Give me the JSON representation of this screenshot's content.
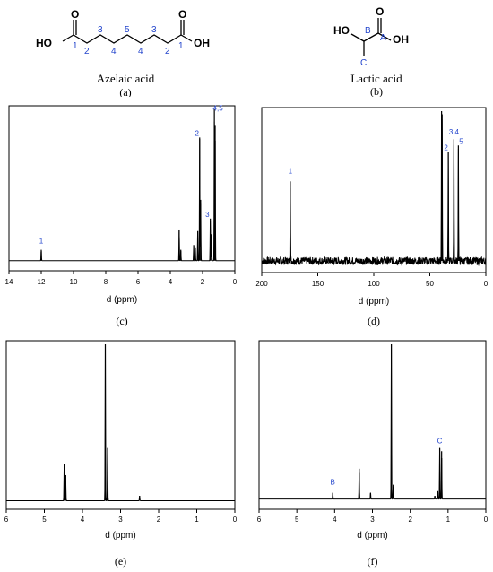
{
  "structures": [
    {
      "name": "Azelaic acid",
      "panel": "(a)",
      "atoms": {
        "oh_left": "HO",
        "oh_right": "OH",
        "o_left": "O",
        "o_right": "O"
      },
      "carbon_labels": [
        "1",
        "2",
        "3",
        "4",
        "5",
        "4",
        "3",
        "2",
        "1"
      ]
    },
    {
      "name": "Lactic acid",
      "panel": "(b)",
      "atoms": {
        "ho": "HO",
        "oh": "OH",
        "o": "O"
      },
      "carbon_labels": {
        "a": "A",
        "b": "B",
        "c": "C"
      }
    }
  ],
  "colors": {
    "label_blue": "#2244cc",
    "line": "#000000"
  },
  "chart_data": [
    {
      "type": "line",
      "panel": "(c)",
      "xlabel": "d (ppm)",
      "xlim": [
        14,
        0
      ],
      "ylim": [
        0,
        100
      ],
      "xticks": [
        14,
        12,
        10,
        8,
        6,
        4,
        2,
        0
      ],
      "baseline": 3,
      "peaks": [
        {
          "x": 12.0,
          "h": 10
        },
        {
          "x": 3.45,
          "h": 23
        },
        {
          "x": 3.35,
          "h": 10
        },
        {
          "x": 2.55,
          "h": 13
        },
        {
          "x": 2.45,
          "h": 11
        },
        {
          "x": 2.3,
          "h": 22
        },
        {
          "x": 2.18,
          "h": 82
        },
        {
          "x": 2.12,
          "h": 42
        },
        {
          "x": 1.52,
          "h": 30
        },
        {
          "x": 1.45,
          "h": 20
        },
        {
          "x": 1.27,
          "h": 100
        },
        {
          "x": 1.22,
          "h": 90
        }
      ],
      "annotations": [
        {
          "x": 12.0,
          "y": 14,
          "text": "1"
        },
        {
          "x": 2.35,
          "y": 83,
          "text": "2"
        },
        {
          "x": 1.7,
          "y": 31,
          "text": "3"
        },
        {
          "x": 1.05,
          "y": 99,
          "text": "4,5"
        }
      ]
    },
    {
      "type": "line",
      "panel": "(d)",
      "xlabel": "d (ppm)",
      "xlim": [
        200,
        0
      ],
      "ylim": [
        0,
        100
      ],
      "xticks": [
        200,
        150,
        100,
        50,
        0
      ],
      "baseline": 4,
      "noise": 2.5,
      "peaks": [
        {
          "x": 174.5,
          "h": 55
        },
        {
          "x": 39.5,
          "h": 100
        },
        {
          "x": 39.0,
          "h": 98
        },
        {
          "x": 33.5,
          "h": 74
        },
        {
          "x": 28.5,
          "h": 82
        },
        {
          "x": 24.5,
          "h": 78
        }
      ],
      "annotations": [
        {
          "x": 174.5,
          "y": 60,
          "text": "1"
        },
        {
          "x": 35.5,
          "y": 75,
          "text": "2"
        },
        {
          "x": 28.5,
          "y": 85,
          "text": "3,4"
        },
        {
          "x": 22.0,
          "y": 79,
          "text": "5"
        }
      ]
    },
    {
      "type": "line",
      "panel": "(e)",
      "xlabel": "d (ppm)",
      "xlim": [
        6,
        0
      ],
      "ylim": [
        0,
        100
      ],
      "xticks": [
        6,
        5,
        4,
        3,
        2,
        1,
        0
      ],
      "baseline": 2,
      "peaks": [
        {
          "x": 4.48,
          "h": 25
        },
        {
          "x": 4.44,
          "h": 18
        },
        {
          "x": 3.4,
          "h": 100
        },
        {
          "x": 3.34,
          "h": 35
        },
        {
          "x": 2.5,
          "h": 5
        }
      ],
      "annotations": []
    },
    {
      "type": "line",
      "panel": "(f)",
      "xlabel": "d (ppm)",
      "xlim": [
        6,
        0
      ],
      "ylim": [
        0,
        100
      ],
      "xticks": [
        6,
        5,
        4,
        3,
        2,
        1,
        0
      ],
      "baseline": 3,
      "peaks": [
        {
          "x": 4.05,
          "h": 7
        },
        {
          "x": 3.35,
          "h": 22
        },
        {
          "x": 3.05,
          "h": 7
        },
        {
          "x": 2.5,
          "h": 100
        },
        {
          "x": 2.45,
          "h": 12
        },
        {
          "x": 1.35,
          "h": 5
        },
        {
          "x": 1.27,
          "h": 8
        },
        {
          "x": 1.22,
          "h": 35
        },
        {
          "x": 1.17,
          "h": 33
        }
      ],
      "annotations": [
        {
          "x": 4.05,
          "y": 12,
          "text": "B"
        },
        {
          "x": 1.22,
          "y": 38,
          "text": "C"
        }
      ]
    }
  ]
}
